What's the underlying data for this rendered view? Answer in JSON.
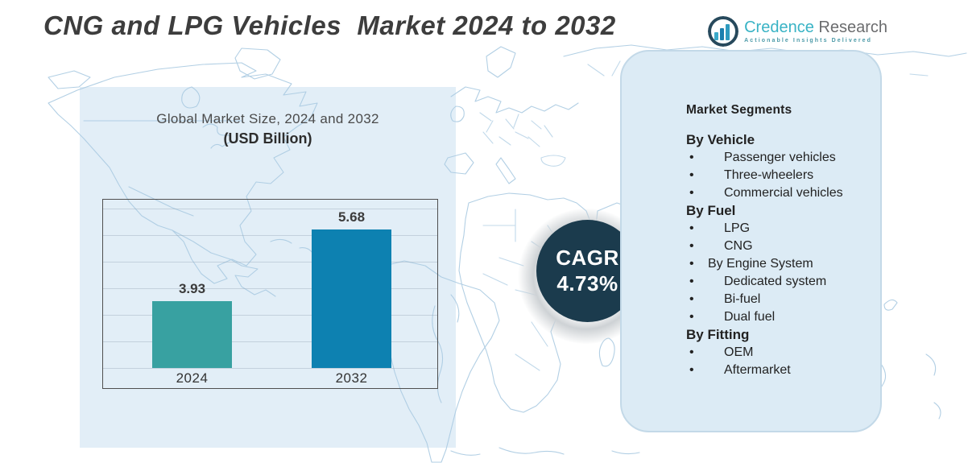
{
  "page": {
    "title": "CNG and LPG Vehicles  Market 2024 to 2032"
  },
  "logo": {
    "icon": "bar-chart-bubble-icon",
    "brand_primary": "Credence",
    "brand_secondary": "Research",
    "tagline": "Actionable Insights Delivered"
  },
  "chart_panel": {
    "title_line1": "Global Market Size, 2024 and 2032",
    "title_line2": "(USD Billion)"
  },
  "chart_data": {
    "type": "bar",
    "title": "Global Market Size, 2024 and 2032",
    "subtitle": "(USD Billion)",
    "categories": [
      "2024",
      "2032"
    ],
    "values": [
      3.93,
      5.68
    ],
    "value_labels": [
      "3.93",
      "5.68"
    ],
    "bar_colors": [
      "#38a1a1",
      "#0d81b1"
    ],
    "xlabel": "",
    "ylabel": "",
    "ylim": [
      2.3,
      6.4
    ],
    "grid": true,
    "legend": "none"
  },
  "cagr_badge": {
    "label": "CAGR",
    "value": "4.73%",
    "bg_color": "#1b3b4d",
    "text_color": "#ffffff"
  },
  "segments_panel": {
    "title": "Market Segments",
    "groups": [
      {
        "heading": "By Vehicle",
        "items": [
          "Passenger vehicles",
          "Three-wheelers",
          "Commercial vehicles"
        ]
      },
      {
        "heading": "By Fuel",
        "items": [
          "LPG",
          "CNG",
          "By Engine System",
          "Dedicated system",
          "Bi-fuel",
          "Dual fuel"
        ]
      },
      {
        "heading": "By Fitting",
        "items": [
          "OEM",
          "Aftermarket"
        ]
      }
    ]
  },
  "colors": {
    "accent_teal": "#38a1a1",
    "accent_blue": "#0d81b1",
    "badge_navy": "#1b3b4d",
    "left_panel_blue": "#e2eef7",
    "right_panel_blue": "#dcebf5",
    "map_line": "#aecde3"
  }
}
